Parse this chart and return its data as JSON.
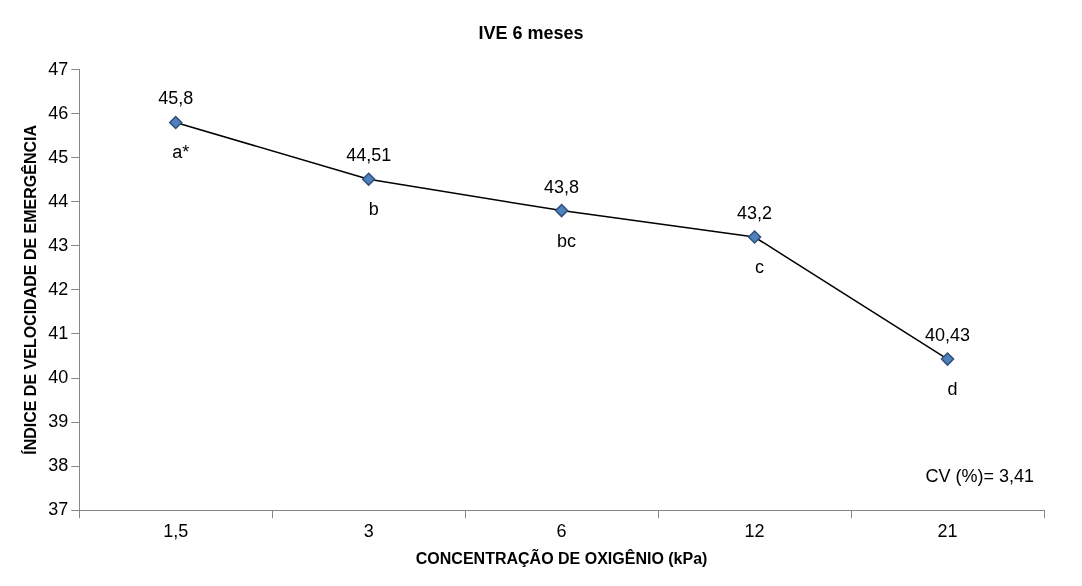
{
  "chart_data": {
    "type": "line",
    "title": "IVE 6 meses",
    "xlabel": "CONCENTRAÇÃO DE OXIGÊNIO (kPa)",
    "ylabel": "ÍNDICE DE VELOCIDADE DE EMERGÊNCIA",
    "categories": [
      "1,5",
      "3",
      "6",
      "12",
      "21"
    ],
    "series": [
      {
        "color": "#4f81bd",
        "values": [
          45.8,
          44.51,
          43.8,
          43.2,
          40.43
        ],
        "value_labels": [
          "45,8",
          "44,51",
          "43,8",
          "43,2",
          "40,43"
        ]
      }
    ],
    "ylim": [
      37,
      47
    ],
    "yticks": [
      37,
      38,
      39,
      40,
      41,
      42,
      43,
      44,
      45,
      46,
      47
    ],
    "grid": false,
    "legend": false,
    "marker": "diamond",
    "line_style": "solid",
    "annotations": [
      {
        "text": "a*",
        "x": "1,5",
        "y": 45.8
      },
      {
        "text": "b",
        "x": "3",
        "y": 44.51
      },
      {
        "text": "bc",
        "x": "6",
        "y": 43.8
      },
      {
        "text": "c",
        "x": "12",
        "y": 43.2
      },
      {
        "text": "d",
        "x": "21",
        "y": 40.43
      },
      "CV (%)= 3,41"
    ]
  }
}
